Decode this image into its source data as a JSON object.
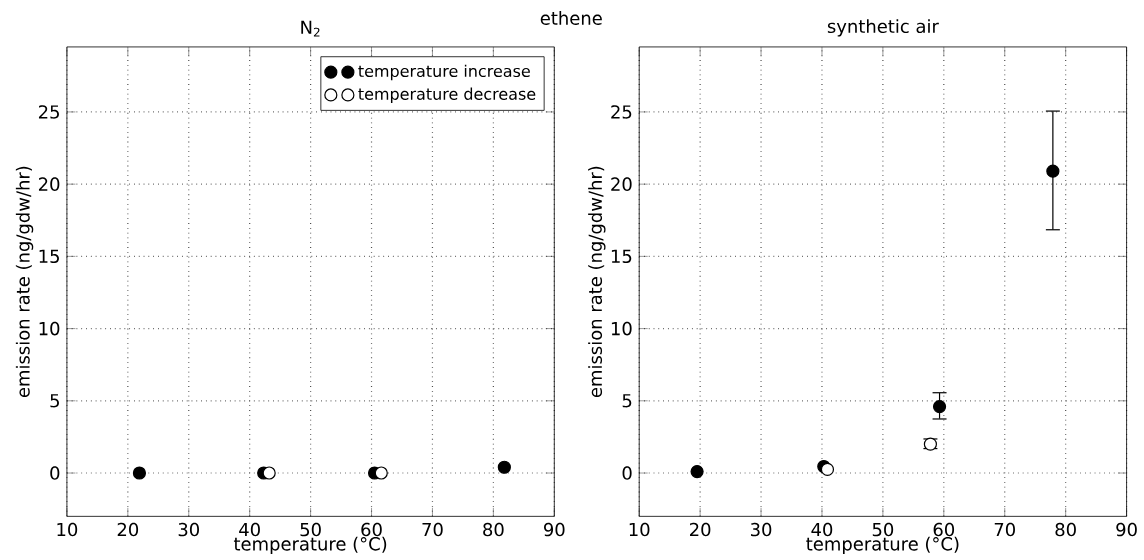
{
  "chart_data": [
    {
      "type": "scatter",
      "title": "ethene",
      "subtitle": "N$_{2}$",
      "xlabel": "temperature (°C)",
      "ylabel": "emission rate (ng/gdw/hr)",
      "xlim": [
        10,
        90
      ],
      "ylim": [
        -3,
        29.5
      ],
      "xticks": [
        10,
        20,
        30,
        40,
        50,
        60,
        70,
        80,
        90
      ],
      "yticks": [
        0,
        5,
        10,
        15,
        20,
        25
      ],
      "grid": true,
      "legend": "top right",
      "marker": "circle",
      "series": [
        {
          "name": "temperature increase",
          "color": "#000000",
          "x": [
            21.9,
            42.3,
            60.5,
            81.8
          ],
          "values": [
            0,
            0,
            0,
            0.4
          ]
        },
        {
          "name": "temperature decrease",
          "color": "#ffffff",
          "x": [
            43.2,
            61.6
          ],
          "values": [
            0,
            0
          ]
        }
      ]
    },
    {
      "type": "scatter",
      "title": "synthetic air",
      "xlabel": "temperature (°C)",
      "ylabel": "emission rate (ng/gdw/hr)",
      "xlim": [
        10,
        90
      ],
      "ylim": [
        -3,
        29.5
      ],
      "xticks": [
        10,
        20,
        30,
        40,
        50,
        60,
        70,
        80,
        90
      ],
      "yticks": [
        0,
        5,
        10,
        15,
        20,
        25
      ],
      "grid": true,
      "marker": "circle",
      "series": [
        {
          "color": "#000000",
          "x": [
            19.5,
            40.3,
            59.3,
            77.9
          ],
          "values": [
            0.1,
            0.45,
            4.6,
            20.9
          ],
          "errors": [
            null,
            null,
            [
              3.7,
              5.6
            ],
            [
              16.8,
              25.1
            ]
          ]
        },
        {
          "color": "#ffffff",
          "x": [
            40.9,
            57.8
          ],
          "values": [
            0.25,
            2.0
          ],
          "errors": [
            null,
            [
              1.65,
              2.4
            ]
          ]
        }
      ]
    }
  ]
}
